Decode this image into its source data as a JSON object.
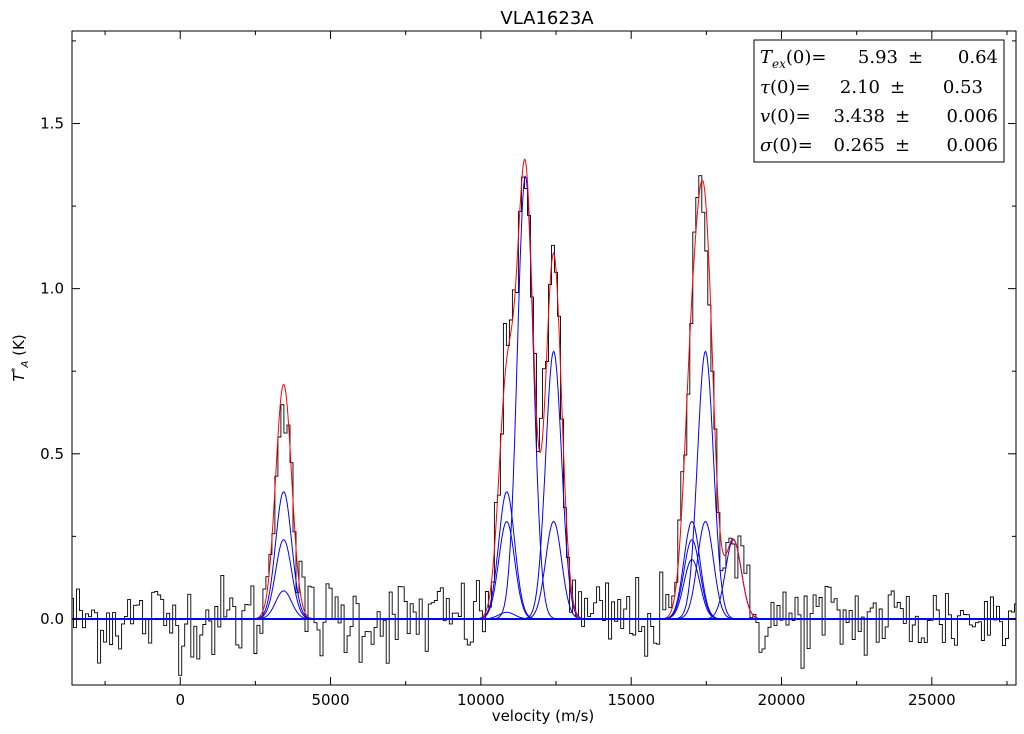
{
  "chart_data": {
    "type": "line",
    "title": "VLA1623A",
    "xlabel": "velocity (m/s)",
    "ylabel": "T*A (K)",
    "xlim": [
      -3600,
      27800
    ],
    "ylim": [
      -0.2,
      1.78
    ],
    "xticks": [
      0,
      5000,
      10000,
      15000,
      20000,
      25000
    ],
    "xtick_labels": [
      "0",
      "5000",
      "10000",
      "15000",
      "20000",
      "25000"
    ],
    "yticks": [
      0.0,
      0.5,
      1.0,
      1.5
    ],
    "ytick_labels": [
      "0.0",
      "0.5",
      "1.0",
      "1.5"
    ],
    "spectrum": {
      "name": "observed spectrum",
      "color": "#000000",
      "channel_width": 100,
      "noise_rms": 0.065
    },
    "fit": {
      "name": "total fit",
      "color": "#ff0000"
    },
    "components": {
      "color": "#0000ff",
      "sigma": 265,
      "items": [
        {
          "center": 3440,
          "amplitude": 0.385
        },
        {
          "center": 3440,
          "amplitude": 0.24
        },
        {
          "center": 3440,
          "amplitude": 0.085
        },
        {
          "center": 10860,
          "amplitude": 0.385
        },
        {
          "center": 10860,
          "amplitude": 0.295
        },
        {
          "center": 10860,
          "amplitude": 0.02
        },
        {
          "center": 11480,
          "amplitude": 1.34
        },
        {
          "center": 12420,
          "amplitude": 0.81
        },
        {
          "center": 12420,
          "amplitude": 0.295
        },
        {
          "center": 17020,
          "amplitude": 0.295
        },
        {
          "center": 17020,
          "amplitude": 0.24
        },
        {
          "center": 17020,
          "amplitude": 0.18
        },
        {
          "center": 17470,
          "amplitude": 0.81
        },
        {
          "center": 17470,
          "amplitude": 0.295
        },
        {
          "center": 18400,
          "amplitude": 0.24
        }
      ]
    },
    "legend": {
      "position": "top-right",
      "entries": [
        {
          "label": "Tex(0)=",
          "value": "5.93",
          "error": "0.64"
        },
        {
          "label": "τ(0)=",
          "value": "2.10",
          "error": "0.53"
        },
        {
          "label": "v(0)=",
          "value": "3.438",
          "error": "0.006"
        },
        {
          "label": "σ(0)=",
          "value": "0.265",
          "error": "0.006"
        }
      ]
    }
  }
}
